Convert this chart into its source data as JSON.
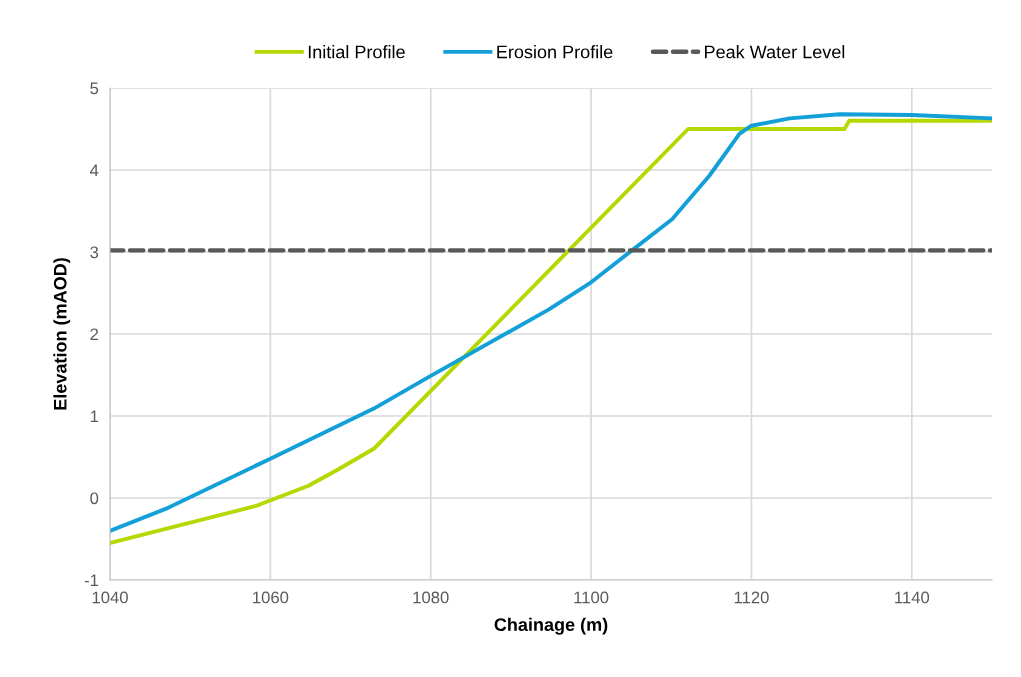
{
  "chart_data": {
    "type": "line",
    "xlabel": "Chainage (m)",
    "ylabel": "Elevation (mAOD)",
    "xlim": [
      1040,
      1150
    ],
    "xticks": [
      1040,
      1060,
      1080,
      1100,
      1120,
      1140
    ],
    "ylim": [
      -1,
      5
    ],
    "yticks": [
      -1,
      0,
      1,
      2,
      3,
      4,
      5
    ],
    "grid": true,
    "legend": "top",
    "marker": "none",
    "series": [
      {
        "name": "Initial Profile",
        "color": "#b5d800",
        "line_style": "solid",
        "x": [
          1040,
          1058.1,
          1064.75,
          1068.5,
          1072.9,
          1112.1,
          1131.6,
          1132.2,
          1150
        ],
        "values": [
          -0.55,
          -0.1,
          0.15,
          0.35,
          0.6,
          4.5,
          4.5,
          4.6,
          4.6
        ]
      },
      {
        "name": "Erosion Profile",
        "color": "#139fd8",
        "line_style": "solid",
        "x": [
          1040,
          1047,
          1060,
          1072.9,
          1080,
          1094.75,
          1100,
          1105.1,
          1110.1,
          1114.75,
          1118.5,
          1120,
          1124.75,
          1131,
          1140,
          1150
        ],
        "values": [
          -0.4,
          -0.13,
          0.48,
          1.09,
          1.49,
          2.3,
          2.63,
          3.02,
          3.4,
          3.93,
          4.44,
          4.54,
          4.63,
          4.68,
          4.67,
          4.63
        ]
      },
      {
        "name": "Peak Water Level",
        "color": "#595959",
        "line_style": "dashed",
        "x": [
          1040,
          1150
        ],
        "values": [
          3.02,
          3.02
        ]
      }
    ]
  }
}
